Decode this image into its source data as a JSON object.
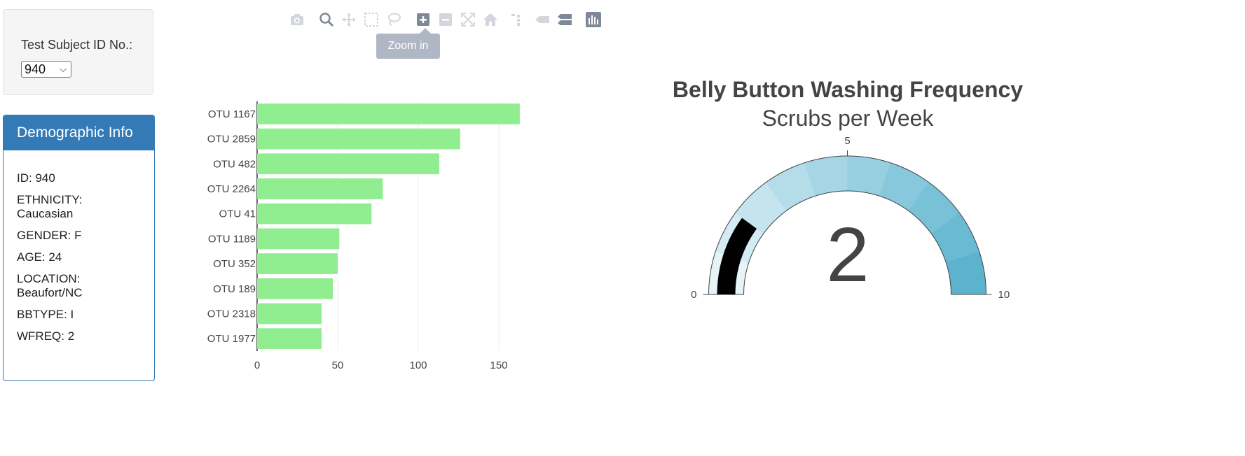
{
  "selector": {
    "label": "Test Subject ID No.:",
    "selected": "940"
  },
  "demographic": {
    "heading": "Demographic Info",
    "items": [
      "ID: 940",
      "ETHNICITY: Caucasian",
      "GENDER: F",
      "AGE: 24",
      "LOCATION: Beaufort/NC",
      "BBTYPE: I",
      "WFREQ: 2"
    ]
  },
  "modebar": {
    "icons": [
      "camera-icon",
      "zoom-icon",
      "pan-icon",
      "box-select-icon",
      "lasso-select-icon",
      "zoom-in-icon",
      "zoom-out-icon",
      "autoscale-icon",
      "home-icon",
      "spike-lines-icon",
      "hover-closest-icon",
      "hover-compare-icon",
      "plotly-logo-icon"
    ],
    "tooltip": "Zoom in"
  },
  "chart_data": [
    {
      "type": "bar",
      "orientation": "horizontal",
      "categories": [
        "OTU 1167",
        "OTU 2859",
        "OTU 482",
        "OTU 2264",
        "OTU 41",
        "OTU 1189",
        "OTU 352",
        "OTU 189",
        "OTU 2318",
        "OTU 1977"
      ],
      "values": [
        163,
        126,
        113,
        78,
        71,
        51,
        50,
        47,
        40,
        40
      ],
      "xlim": [
        0,
        165
      ],
      "xticks": [
        "0",
        "50",
        "100",
        "150"
      ],
      "grid": true,
      "color": "#90ee90"
    },
    {
      "type": "gauge",
      "title": "Belly Button Washing Frequency",
      "subtitle": "Scrubs per Week",
      "value": 2,
      "value_label": "2",
      "range": [
        0,
        10
      ],
      "ticks": [
        "0",
        "5",
        "10"
      ],
      "bar_color": "#000000",
      "steps": [
        "#e6f3f7",
        "#d3ebf2",
        "#c4e4ee",
        "#b5dde9",
        "#a6d6e5",
        "#97cfe0",
        "#88c8dc",
        "#79c1d7",
        "#6abad3",
        "#5bb3ce"
      ]
    }
  ]
}
